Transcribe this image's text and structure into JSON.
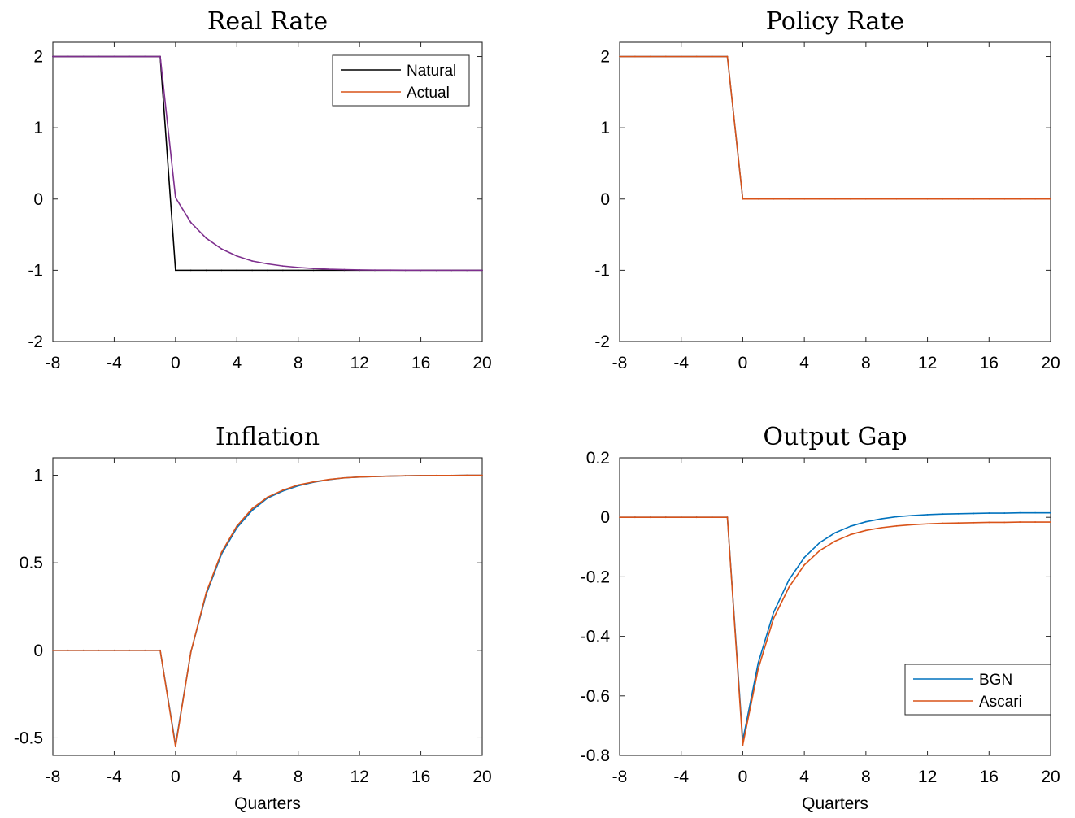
{
  "chart_data": [
    {
      "type": "line",
      "title": "Real Rate",
      "xlabel": "",
      "ylabel": "",
      "xlim": [
        -8,
        20
      ],
      "ylim": [
        -2,
        2.2
      ],
      "xticks": [
        -8,
        -4,
        0,
        4,
        8,
        12,
        16,
        20
      ],
      "yticks": [
        -2,
        -1,
        0,
        1,
        2
      ],
      "ytick_labels": [
        "-2",
        "-1",
        "0",
        "1",
        "2"
      ],
      "legend": "top-right",
      "x": [
        -8,
        -7,
        -6,
        -5,
        -4,
        -3,
        -2,
        -1,
        0,
        1,
        2,
        3,
        4,
        5,
        6,
        7,
        8,
        9,
        10,
        11,
        12,
        13,
        14,
        15,
        16,
        17,
        18,
        19,
        20
      ],
      "series": [
        {
          "name": "Natural",
          "color": "#000000",
          "values": [
            2,
            2,
            2,
            2,
            2,
            2,
            2,
            2,
            -1,
            -1,
            -1,
            -1,
            -1,
            -1,
            -1,
            -1,
            -1,
            -1,
            -1,
            -1,
            -1,
            -1,
            -1,
            -1,
            -1,
            -1,
            -1,
            -1,
            -1
          ]
        },
        {
          "name": "Actual",
          "color": "#D95319",
          "draw_color": "#7E2F8E",
          "values": [
            2,
            2,
            2,
            2,
            2,
            2,
            2,
            2,
            0.02,
            -0.33,
            -0.55,
            -0.7,
            -0.8,
            -0.87,
            -0.91,
            -0.94,
            -0.96,
            -0.975,
            -0.985,
            -0.99,
            -0.995,
            -0.997,
            -0.998,
            -0.999,
            -1,
            -1,
            -1,
            -1,
            -1
          ]
        }
      ]
    },
    {
      "type": "line",
      "title": "Policy Rate",
      "xlabel": "",
      "ylabel": "",
      "xlim": [
        -8,
        20
      ],
      "ylim": [
        -2,
        2.2
      ],
      "xticks": [
        -8,
        -4,
        0,
        4,
        8,
        12,
        16,
        20
      ],
      "yticks": [
        -2,
        -1,
        0,
        1,
        2
      ],
      "ytick_labels": [
        "-2",
        "-1",
        "0",
        "1",
        "2"
      ],
      "x": [
        -8,
        -7,
        -6,
        -5,
        -4,
        -3,
        -2,
        -1,
        0,
        1,
        2,
        3,
        4,
        5,
        6,
        7,
        8,
        9,
        10,
        11,
        12,
        13,
        14,
        15,
        16,
        17,
        18,
        19,
        20
      ],
      "series": [
        {
          "color": "#0072BD",
          "values": [
            2,
            2,
            2,
            2,
            2,
            2,
            2,
            2,
            0,
            0,
            0,
            0,
            0,
            0,
            0,
            0,
            0,
            0,
            0,
            0,
            0,
            0,
            0,
            0,
            0,
            0,
            0,
            0,
            0
          ]
        },
        {
          "color": "#D95319",
          "values": [
            2,
            2,
            2,
            2,
            2,
            2,
            2,
            2,
            0,
            0,
            0,
            0,
            0,
            0,
            0,
            0,
            0,
            0,
            0,
            0,
            0,
            0,
            0,
            0,
            0,
            0,
            0,
            0,
            0
          ]
        }
      ]
    },
    {
      "type": "line",
      "title": "Inflation",
      "xlabel": "Quarters",
      "ylabel": "",
      "xlim": [
        -8,
        20
      ],
      "ylim": [
        -0.6,
        1.1
      ],
      "xticks": [
        -8,
        -4,
        0,
        4,
        8,
        12,
        16,
        20
      ],
      "yticks": [
        -0.5,
        0,
        0.5,
        1
      ],
      "ytick_labels": [
        "-0.5",
        "0",
        "0.5",
        "1"
      ],
      "x": [
        -8,
        -7,
        -6,
        -5,
        -4,
        -3,
        -2,
        -1,
        0,
        1,
        2,
        3,
        4,
        5,
        6,
        7,
        8,
        9,
        10,
        11,
        12,
        13,
        14,
        15,
        16,
        17,
        18,
        19,
        20
      ],
      "series": [
        {
          "color": "#0072BD",
          "values": [
            0,
            0,
            0,
            0,
            0,
            0,
            0,
            0,
            -0.54,
            -0.01,
            0.32,
            0.55,
            0.7,
            0.8,
            0.87,
            0.91,
            0.94,
            0.96,
            0.975,
            0.985,
            0.99,
            0.993,
            0.995,
            0.997,
            0.998,
            0.999,
            0.999,
            1,
            1
          ]
        },
        {
          "color": "#D95319",
          "values": [
            0,
            0,
            0,
            0,
            0,
            0,
            0,
            0,
            -0.55,
            -0.01,
            0.33,
            0.56,
            0.71,
            0.81,
            0.875,
            0.915,
            0.945,
            0.962,
            0.976,
            0.985,
            0.99,
            0.993,
            0.995,
            0.997,
            0.998,
            0.999,
            0.999,
            1,
            1
          ]
        }
      ]
    },
    {
      "type": "line",
      "title": "Output Gap",
      "xlabel": "Quarters",
      "ylabel": "",
      "xlim": [
        -8,
        20
      ],
      "ylim": [
        -0.8,
        0.2
      ],
      "xticks": [
        -8,
        -4,
        0,
        4,
        8,
        12,
        16,
        20
      ],
      "yticks": [
        -0.8,
        -0.6,
        -0.4,
        -0.2,
        0,
        0.2
      ],
      "ytick_labels": [
        "-0.8",
        "-0.6",
        "-0.4",
        "-0.2",
        "0",
        "0.2"
      ],
      "legend": "bottom-right",
      "x": [
        -8,
        -7,
        -6,
        -5,
        -4,
        -3,
        -2,
        -1,
        0,
        1,
        2,
        3,
        4,
        5,
        6,
        7,
        8,
        9,
        10,
        11,
        12,
        13,
        14,
        15,
        16,
        17,
        18,
        19,
        20
      ],
      "series": [
        {
          "name": "BGN",
          "color": "#0072BD",
          "values": [
            0,
            0,
            0,
            0,
            0,
            0,
            0,
            0,
            -0.75,
            -0.49,
            -0.32,
            -0.21,
            -0.135,
            -0.085,
            -0.052,
            -0.03,
            -0.015,
            -0.005,
            0.002,
            0.006,
            0.009,
            0.011,
            0.012,
            0.013,
            0.014,
            0.014,
            0.015,
            0.015,
            0.015
          ]
        },
        {
          "name": "Ascari",
          "color": "#D95319",
          "values": [
            0,
            0,
            0,
            0,
            0,
            0,
            0,
            0,
            -0.765,
            -0.51,
            -0.34,
            -0.235,
            -0.16,
            -0.112,
            -0.08,
            -0.058,
            -0.044,
            -0.035,
            -0.029,
            -0.025,
            -0.022,
            -0.02,
            -0.019,
            -0.018,
            -0.017,
            -0.017,
            -0.016,
            -0.016,
            -0.016
          ]
        }
      ]
    }
  ]
}
